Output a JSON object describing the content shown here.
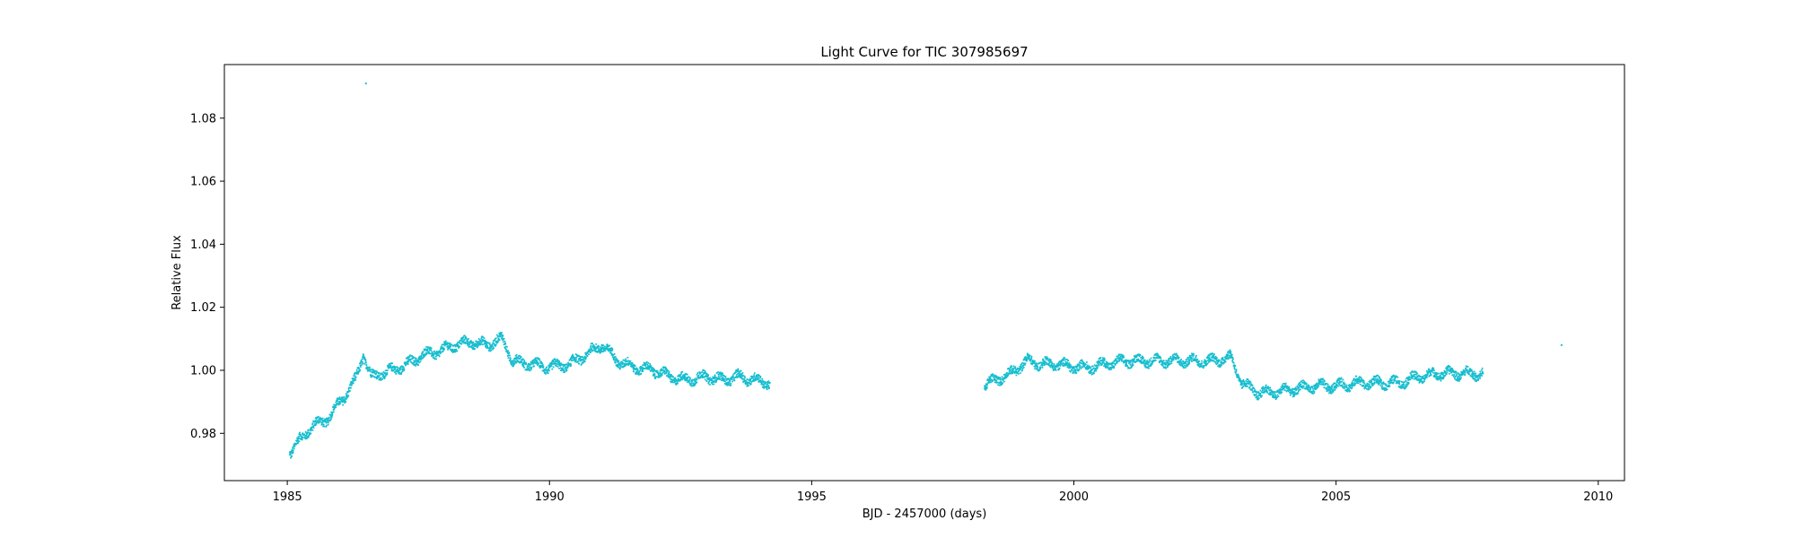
{
  "chart_data": {
    "type": "scatter",
    "title": "Light Curve for TIC 307985697",
    "xlabel": "BJD - 2457000 (days)",
    "ylabel": "Relative Flux",
    "xlim": [
      1983.8,
      2010.5
    ],
    "ylim": [
      0.965,
      1.097
    ],
    "xticks": [
      1985,
      1990,
      1995,
      2000,
      2005,
      2010
    ],
    "yticks": [
      0.98,
      1.0,
      1.02,
      1.04,
      1.06,
      1.08
    ],
    "grid": false,
    "marker_color": "#17becf",
    "series": [
      {
        "x": [
          1985.05,
          1985.2,
          1985.4,
          1985.55,
          1985.7,
          1985.85,
          1986.0,
          1986.15,
          1986.3,
          1986.45,
          1986.6,
          1986.8,
          1987.0,
          1987.3,
          1987.6,
          1987.9,
          1988.2,
          1988.5,
          1988.8,
          1989.1,
          1989.3,
          1989.6,
          1990.0,
          1990.4,
          1990.7,
          1991.0,
          1991.3,
          1991.6,
          1992.0,
          1992.3,
          1992.6,
          1993.0,
          1993.3,
          1993.6,
          1993.9,
          1994.2
        ],
        "y": [
          0.974,
          0.977,
          0.981,
          0.983,
          0.984,
          0.986,
          0.99,
          0.993,
          0.997,
          1.005,
          0.998,
          0.999,
          1.0,
          1.002,
          1.005,
          1.006,
          1.008,
          1.009,
          1.008,
          1.01,
          1.003,
          1.002,
          1.001,
          1.002,
          1.005,
          1.008,
          1.003,
          1.001,
          1.0,
          0.998,
          0.997,
          0.998,
          0.997,
          0.998,
          0.997,
          0.996
        ]
      },
      {
        "x": [
          1998.3,
          1998.5,
          1998.8,
          1999.1,
          1999.4,
          1999.7,
          2000.0,
          2000.3,
          2000.6,
          2001.0,
          2001.4,
          2001.8,
          2002.2,
          2002.6,
          2003.0,
          2003.2,
          2003.5,
          2003.8,
          2004.2,
          2004.6,
          2005.0,
          2005.4,
          2005.8,
          2006.2,
          2006.6,
          2007.0,
          2007.4,
          2007.8
        ],
        "y": [
          0.995,
          0.997,
          0.999,
          1.003,
          1.002,
          1.002,
          1.001,
          1.001,
          1.002,
          1.003,
          1.003,
          1.003,
          1.003,
          1.003,
          1.004,
          0.996,
          0.993,
          0.993,
          0.994,
          0.995,
          0.995,
          0.996,
          0.996,
          0.996,
          0.998,
          0.999,
          0.999,
          0.999
        ]
      },
      {
        "x": [
          1986.5,
          2009.3
        ],
        "y": [
          1.091,
          1.008
        ]
      }
    ]
  }
}
